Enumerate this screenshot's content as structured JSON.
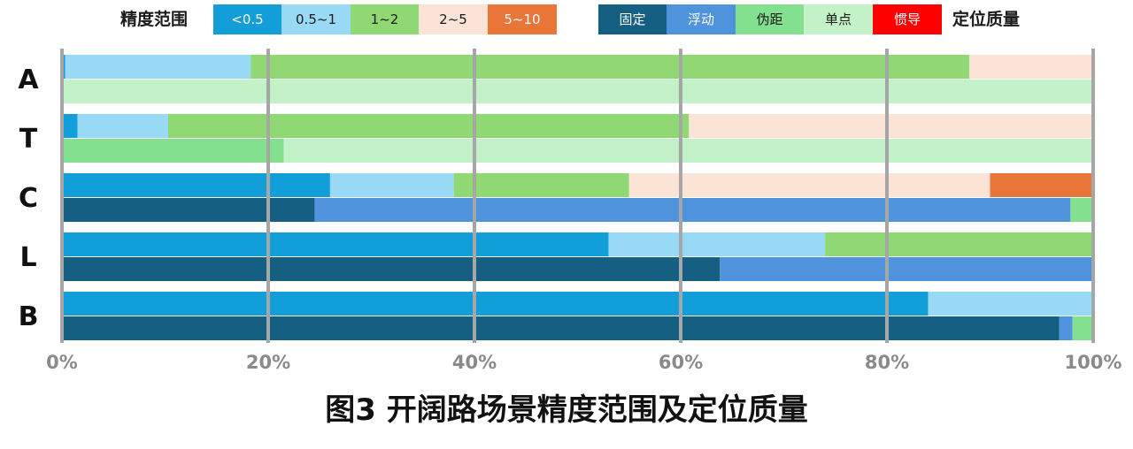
{
  "legend": {
    "precision_title": "精度范围",
    "quality_title": "定位质量",
    "precision_items": [
      {
        "label": "<0.5",
        "color": "#129fd9",
        "text_color": "#ffffff"
      },
      {
        "label": "0.5~1",
        "color": "#98d9f5",
        "text_color": "#1a1a1a"
      },
      {
        "label": "1~2",
        "color": "#8fd873",
        "text_color": "#1a1a1a"
      },
      {
        "label": "2~5",
        "color": "#fbe3d6",
        "text_color": "#1a1a1a"
      },
      {
        "label": "5~10",
        "color": "#ea7539",
        "text_color": "#ffffff"
      }
    ],
    "quality_items": [
      {
        "label": "固定",
        "color": "#145f82",
        "text_color": "#ffffff"
      },
      {
        "label": "浮动",
        "color": "#4e93db",
        "text_color": "#ffffff"
      },
      {
        "label": "伪距",
        "color": "#82e08f",
        "text_color": "#1a1a1a"
      },
      {
        "label": "单点",
        "color": "#c3f2c8",
        "text_color": "#1a1a1a"
      },
      {
        "label": "惯导",
        "color": "#ff0000",
        "text_color": "#ffffff"
      }
    ]
  },
  "title": "图3 开阔路场景精度范围及定位质量",
  "chart_data": {
    "type": "bar",
    "orientation": "horizontal",
    "stacked": true,
    "categories": [
      "A",
      "T",
      "C",
      "L",
      "B"
    ],
    "xlim": [
      0,
      100
    ],
    "x_ticks": [
      "0%",
      "20%",
      "40%",
      "60%",
      "80%",
      "100%"
    ],
    "grid": true,
    "precision_series": [
      {
        "name": "<0.5",
        "values": [
          0.3,
          1.5,
          26,
          53,
          84
        ]
      },
      {
        "name": "0.5~1",
        "values": [
          18,
          8.8,
          12,
          21,
          16
        ]
      },
      {
        "name": "1~2",
        "values": [
          69.7,
          50.5,
          17,
          26,
          0
        ]
      },
      {
        "name": "2~5",
        "values": [
          12,
          39.2,
          35,
          0,
          0
        ]
      },
      {
        "name": "5~10",
        "values": [
          0,
          0,
          10,
          0,
          0
        ]
      }
    ],
    "quality_series": [
      {
        "name": "固定",
        "values": [
          0,
          0,
          24.5,
          63.8,
          96.7
        ]
      },
      {
        "name": "浮动",
        "values": [
          0,
          0,
          73.3,
          36.2,
          1.3
        ]
      },
      {
        "name": "伪距",
        "values": [
          0,
          21.5,
          2.2,
          0,
          2
        ]
      },
      {
        "name": "单点",
        "values": [
          100,
          78.5,
          0,
          0,
          0
        ]
      },
      {
        "name": "惯导",
        "values": [
          0,
          0,
          0,
          0,
          0
        ]
      }
    ]
  }
}
